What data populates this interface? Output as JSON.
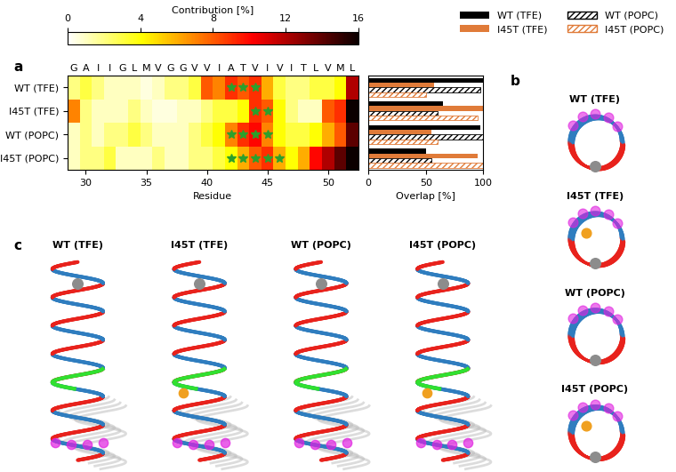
{
  "panel_labels": [
    "a",
    "b",
    "c"
  ],
  "chart_data": [
    {
      "type": "heatmap",
      "rows": [
        "WT (TFE)",
        "I45T (TFE)",
        "WT (POPC)",
        "I45T (POPC)"
      ],
      "x": [
        29,
        30,
        31,
        32,
        33,
        34,
        35,
        36,
        37,
        38,
        39,
        40,
        41,
        42,
        43,
        44,
        45,
        46,
        47,
        48,
        49,
        50,
        51,
        52
      ],
      "sequence": [
        "G",
        "A",
        "I",
        "I",
        "G",
        "L",
        "M",
        "V",
        "G",
        "G",
        "V",
        "V",
        "I",
        "A",
        "T",
        "V",
        "I",
        "V",
        "I",
        "T",
        "L",
        "V",
        "M",
        "L"
      ],
      "cells": [
        [
          2,
          3,
          2,
          1,
          1,
          1,
          0.5,
          1,
          2,
          2,
          3,
          8,
          7,
          9,
          8,
          9,
          6,
          3,
          2,
          2,
          3,
          3,
          4,
          12
        ],
        [
          7,
          2,
          1,
          1,
          1,
          2,
          1,
          0.5,
          0.5,
          1,
          1,
          2,
          3,
          3,
          4,
          9,
          8,
          4,
          2,
          1,
          1,
          8,
          9,
          16
        ],
        [
          1,
          2,
          1,
          2,
          2,
          3,
          2,
          1,
          1,
          1,
          2,
          3,
          4,
          7,
          9,
          10,
          7,
          4,
          3,
          3,
          4,
          6,
          8,
          14
        ],
        [
          1,
          2,
          2,
          3,
          1,
          1,
          1,
          2,
          1,
          1,
          2,
          2,
          3,
          4,
          6,
          8,
          9,
          6,
          4,
          6,
          10,
          12,
          14,
          16
        ]
      ],
      "stars": [
        [
          42,
          43,
          44
        ],
        [
          44,
          45
        ],
        [
          42,
          43,
          44,
          45
        ],
        [
          42,
          43,
          44,
          45,
          46
        ]
      ],
      "marker": "*",
      "color": "hot_r",
      "xlabel": "Residue",
      "xlim": [
        28.5,
        52.5
      ],
      "xticks": [
        30,
        35,
        40,
        45,
        50
      ],
      "colorbar": {
        "label": "Contribution [%]",
        "range": [
          0,
          16
        ],
        "ticks": [
          0,
          4,
          8,
          12,
          16
        ]
      }
    },
    {
      "type": "bar",
      "orientation": "horizontal",
      "categories": [
        "WT (TFE)",
        "I45T (TFE)",
        "WT (POPC)",
        "I45T (POPC)"
      ],
      "series": [
        {
          "name": "WT (TFE)",
          "color": "#000000",
          "values": [
            100,
            65,
            97,
            50
          ]
        },
        {
          "name": "I45T (TFE)",
          "color": "#e07b39",
          "values": [
            57,
            100,
            55,
            95
          ]
        },
        {
          "name": "WT (POPC)",
          "color": "#000000",
          "line_style": "hatched",
          "values": [
            97,
            60,
            100,
            55
          ]
        },
        {
          "name": "I45T (POPC)",
          "color": "#e07b39",
          "line_style": "hatched",
          "values": [
            50,
            95,
            60,
            100
          ]
        }
      ],
      "xlabel": "Overlap [%]",
      "xlim": [
        0,
        100
      ],
      "xticks": [
        0,
        50,
        100
      ],
      "tick_labels": "x",
      "legend": "upper right"
    }
  ],
  "diagrams": {
    "b": {
      "titles": [
        "WT (TFE)",
        "I45T (TFE)",
        "WT (POPC)",
        "I45T (POPC)"
      ]
    },
    "c": {
      "titles": [
        "WT (TFE)",
        "I45T (TFE)",
        "WT (POPC)",
        "I45T (POPC)"
      ]
    }
  }
}
